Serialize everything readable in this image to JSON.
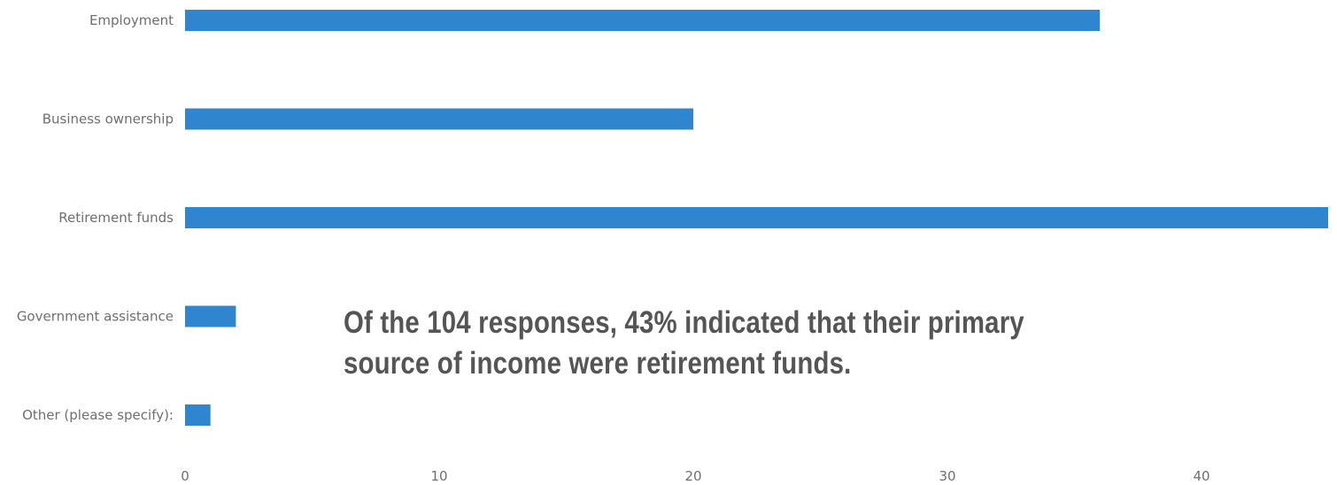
{
  "chart_data": {
    "type": "bar",
    "orientation": "horizontal",
    "categories": [
      "Employment",
      "Business ownership",
      "Retirement funds",
      "Government assistance",
      "Other (please specify):"
    ],
    "values": [
      36,
      20,
      45,
      2,
      1
    ],
    "x_ticks": [
      "0",
      "10",
      "20",
      "30",
      "40"
    ],
    "xlim": [
      0,
      45
    ],
    "grid": false,
    "bar_color": "#2f86cf",
    "annotation": {
      "line1": "Of the 104 responses, 43% indicated that their primary",
      "line2": "source of income were retirement funds."
    }
  }
}
